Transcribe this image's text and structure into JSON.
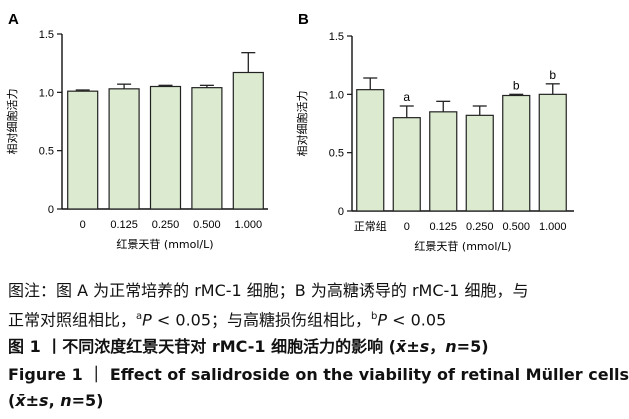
{
  "chart_data": [
    {
      "type": "bar",
      "panel_label": "A",
      "categories": [
        "0",
        "0.125",
        "0.250",
        "0.500",
        "1.000"
      ],
      "values": [
        1.01,
        1.03,
        1.05,
        1.04,
        1.17
      ],
      "errors": [
        0.01,
        0.04,
        0.01,
        0.02,
        0.17
      ],
      "sig_marks": [
        "",
        "",
        "",
        "",
        ""
      ],
      "xlabel": "红景天苷 (mmol/L)",
      "ylabel": "相对细胞活力",
      "ylim": [
        0,
        1.5
      ],
      "yticks": [
        "0",
        "0.5",
        "1.0",
        "1.5"
      ],
      "bar_color": "#dcebd0"
    },
    {
      "type": "bar",
      "panel_label": "B",
      "categories": [
        "正常组",
        "0",
        "0.125",
        "0.250",
        "0.500",
        "1.000"
      ],
      "values": [
        1.04,
        0.8,
        0.85,
        0.82,
        0.99,
        1.0
      ],
      "errors": [
        0.1,
        0.1,
        0.09,
        0.08,
        0.01,
        0.09
      ],
      "sig_marks": [
        "",
        "a",
        "",
        "",
        "b",
        "b"
      ],
      "xlabel": "红景天苷 (mmol/L)",
      "ylabel": "相对细胞活力",
      "ylim": [
        0,
        1.5
      ],
      "yticks": [
        "0",
        "0.5",
        "1.0",
        "1.5"
      ],
      "bar_color": "#dcebd0"
    }
  ],
  "caption": {
    "note_prefix": "图注：图 A 为正常培养的 rMC-1 细胞；B 为高糖诱导的 rMC-1 细胞，与",
    "note_line2_a": "正常对照组相比，",
    "sup_a": "a",
    "p_label": "P",
    "p_val_a": " < 0.05；与高糖损伤组相比，",
    "sup_b": "b",
    "p_val_b": " < 0.05",
    "cn_title_main": "图 1 丨不同浓度红景天苷对 rMC-1 细胞活力的影响 (",
    "cn_stat": "x̄±s",
    "cn_comma": "，",
    "cn_n": "n",
    "cn_n_val": "=5)",
    "en_title_line1": "Figure 1 ｜ Effect of salidroside on the viability of retinal Müller cells",
    "en_title_line2_open": "(",
    "en_stat": "x̄±s",
    "en_comma": ", ",
    "en_n": "n",
    "en_n_val": "=5)"
  }
}
